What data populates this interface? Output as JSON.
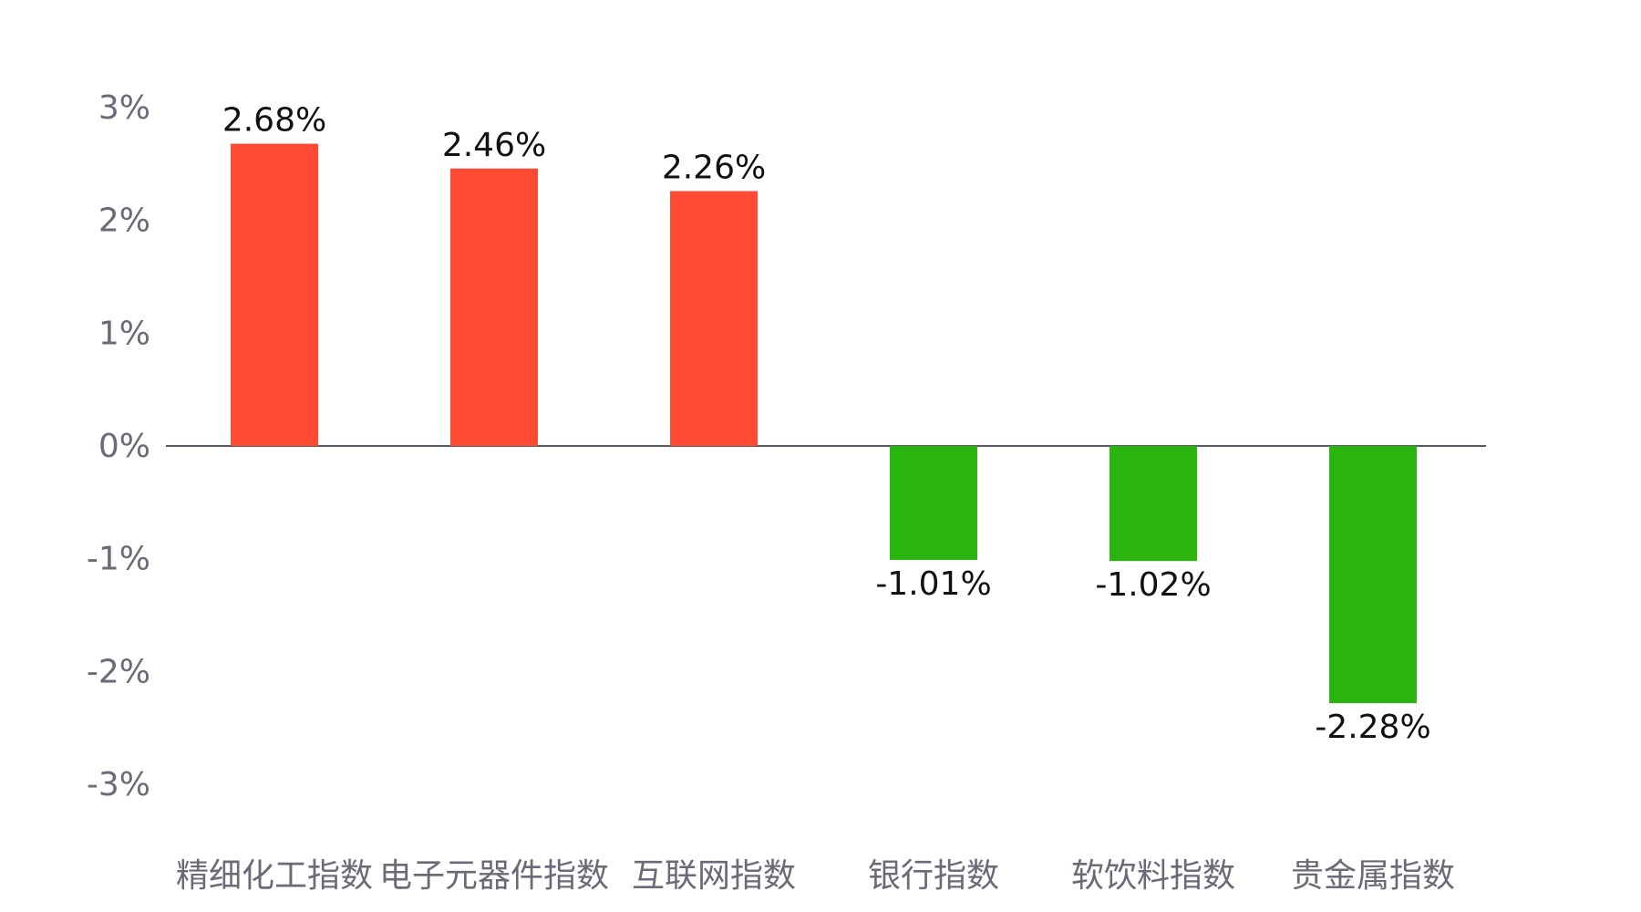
{
  "chart_data": {
    "type": "bar",
    "title": "",
    "xlabel": "",
    "ylabel": "",
    "categories": [
      "精细化工指数",
      "电子元器件指数",
      "互联网指数",
      "银行指数",
      "软饮料指数",
      "贵金属指数"
    ],
    "values": [
      2.68,
      2.46,
      2.26,
      -1.01,
      -1.02,
      -2.28
    ],
    "value_labels": [
      "2.68%",
      "2.46%",
      "2.26%",
      "-1.01%",
      "-1.02%",
      "-2.28%"
    ],
    "ylim": [
      -3,
      3
    ],
    "yticks": [
      3,
      2,
      1,
      0,
      -1,
      -2,
      -3
    ],
    "ytick_labels": [
      "3%",
      "2%",
      "1%",
      "0%",
      "-1%",
      "-2%",
      "-3%"
    ],
    "grid": false,
    "colors": {
      "positive": "#ff4b33",
      "negative": "#2ab40f",
      "axis": "#5a5a66"
    }
  }
}
